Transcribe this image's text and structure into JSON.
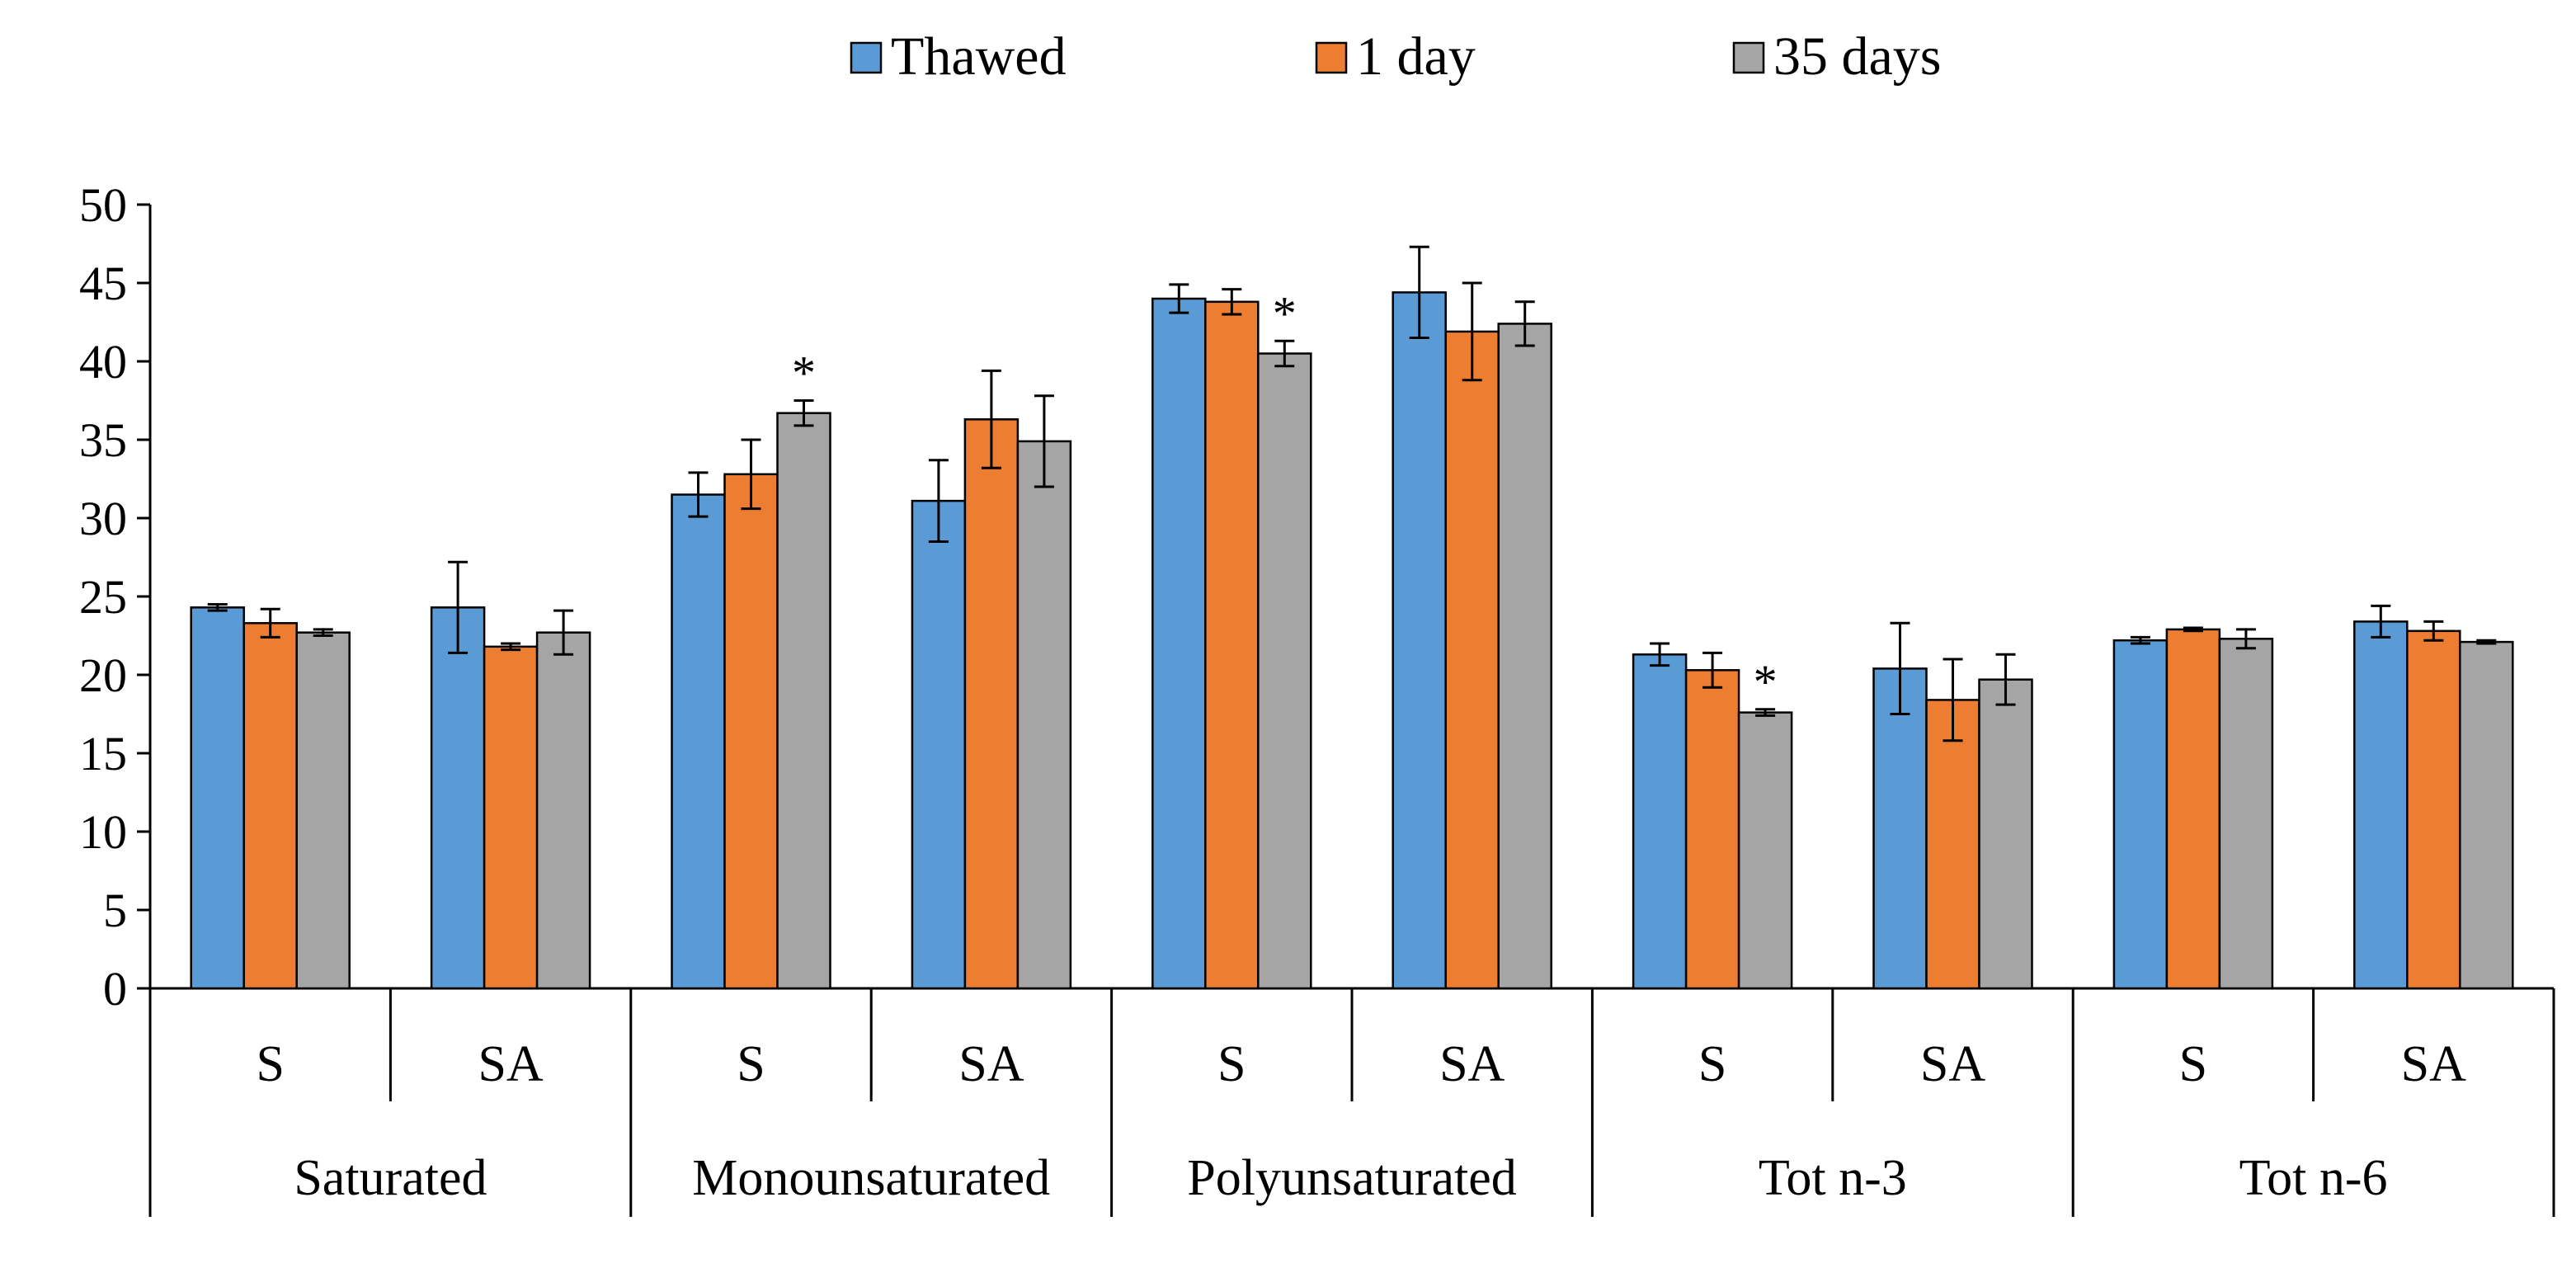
{
  "colors": {
    "thawed": "#5B9BD5",
    "one_day": "#ED7D31",
    "thirty_five_days": "#A5A5A5",
    "axis": "#000000",
    "error_bar": "#000000"
  },
  "chart_data": {
    "type": "bar",
    "title": "",
    "xlabel": "",
    "ylabel": "",
    "ylim": [
      0,
      50
    ],
    "yticks": [
      0,
      5,
      10,
      15,
      20,
      25,
      30,
      35,
      40,
      45,
      50
    ],
    "grid": false,
    "legend_position": "top-center",
    "groups": [
      "Saturated",
      "Monounsaturated",
      "Polyunsaturated",
      "Tot n-3",
      "Tot n-6"
    ],
    "subcategories": [
      "S",
      "SA"
    ],
    "categories": [
      "S",
      "SA",
      "S",
      "SA",
      "S",
      "SA",
      "S",
      "SA",
      "S",
      "SA"
    ],
    "series": [
      {
        "name": "Thawed",
        "values": [
          24.3,
          24.3,
          31.5,
          31.1,
          44.0,
          44.4,
          21.3,
          20.4,
          22.2,
          23.4
        ],
        "errors": [
          0.2,
          2.9,
          1.4,
          2.6,
          0.9,
          2.9,
          0.7,
          2.9,
          0.2,
          1.0
        ]
      },
      {
        "name": "1 day",
        "values": [
          23.3,
          21.8,
          32.8,
          36.3,
          43.8,
          41.9,
          20.3,
          18.4,
          22.9,
          22.8
        ],
        "errors": [
          0.9,
          0.2,
          2.2,
          3.1,
          0.8,
          3.1,
          1.1,
          2.6,
          0.1,
          0.6
        ]
      },
      {
        "name": "35 days",
        "values": [
          22.7,
          22.7,
          36.7,
          34.9,
          40.5,
          42.4,
          17.6,
          19.7,
          22.3,
          22.1
        ],
        "errors": [
          0.2,
          1.4,
          0.8,
          2.9,
          0.8,
          1.4,
          0.2,
          1.6,
          0.6,
          0.1
        ]
      }
    ],
    "annotations": [
      {
        "category_index": 2,
        "series": "35 days",
        "text": "*"
      },
      {
        "category_index": 4,
        "series": "35 days",
        "text": "*"
      },
      {
        "category_index": 6,
        "series": "35 days",
        "text": "*"
      }
    ]
  }
}
